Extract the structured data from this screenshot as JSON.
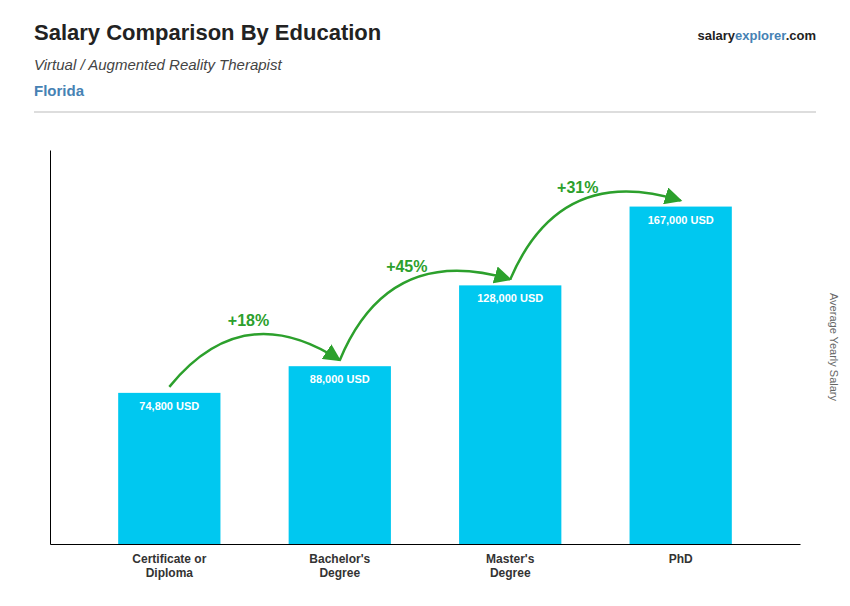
{
  "chart_data": {
    "type": "bar",
    "title": "Salary Comparison By Education",
    "subtitle": "Virtual / Augmented Reality Therapist",
    "location": "Florida",
    "brand": [
      "salary",
      "explorer",
      ".com"
    ],
    "ylabel": "Average Yearly Salary",
    "categories": [
      "Certificate or\nDiploma",
      "Bachelor's\nDegree",
      "Master's\nDegree",
      "PhD"
    ],
    "values": [
      74800,
      88000,
      128000,
      167000
    ],
    "value_labels": [
      "74,800 USD",
      "88,000 USD",
      "128,000 USD",
      "167,000 USD"
    ],
    "data_labels": true,
    "annotations": [
      "+18%",
      "+45%",
      "+31%"
    ],
    "color": "#00c8f0",
    "ylim": [
      0,
      195000
    ],
    "grid": false,
    "tick_labels": "x"
  }
}
